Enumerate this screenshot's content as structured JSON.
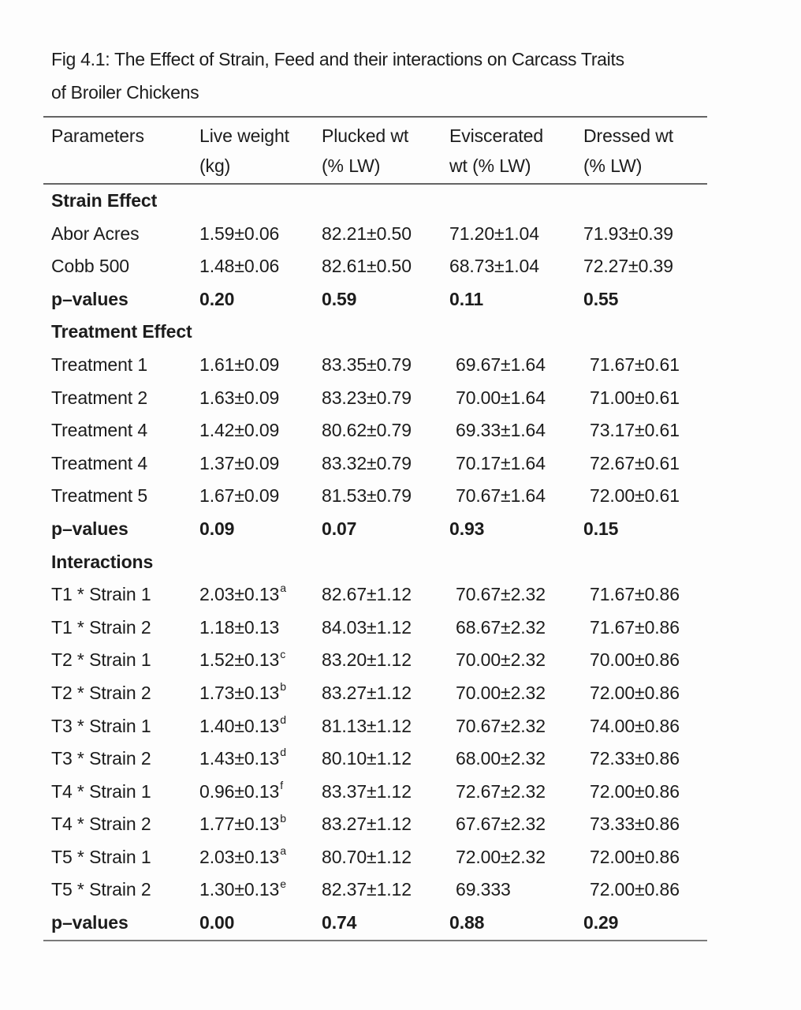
{
  "page": {
    "background_color": "#fdfdfd",
    "text_color": "#1c1c1c",
    "rule_color": "#646464"
  },
  "figure": {
    "title_line1": "Fig 4.1: The Effect of Strain, Feed and their interactions on Carcass Traits",
    "title_line2": "of Broiler Chickens"
  },
  "table": {
    "column_headers": [
      "Parameters",
      "Live weight\n(kg)",
      "Plucked wt\n(% LW)",
      "Eviscerated\nwt (% LW)",
      "Dressed wt\n(% LW)"
    ],
    "sections": [
      {
        "header": "Strain Effect",
        "rows": [
          {
            "label": "Abor Acres",
            "values": [
              "1.59±0.06",
              "82.21±0.50",
              "71.20±1.04",
              "71.93±0.39"
            ]
          },
          {
            "label": "Cobb 500",
            "values": [
              "1.48±0.06",
              "82.61±0.50",
              "68.73±1.04",
              "72.27±0.39"
            ]
          },
          {
            "label": "p–values",
            "bold": true,
            "values": [
              "0.20",
              "0.59",
              "0.11",
              "0.55"
            ]
          }
        ]
      },
      {
        "header": "Treatment Effect",
        "rows": [
          {
            "label": "Treatment 1",
            "values": [
              "1.61±0.09",
              "83.35±0.79",
              "69.67±1.64",
              "71.67±0.61"
            ]
          },
          {
            "label": "Treatment 2",
            "values": [
              "1.63±0.09",
              "83.23±0.79",
              "70.00±1.64",
              "71.00±0.61"
            ]
          },
          {
            "label": "Treatment 4",
            "values": [
              "1.42±0.09",
              "80.62±0.79",
              "69.33±1.64",
              "73.17±0.61"
            ]
          },
          {
            "label": "Treatment 4",
            "values": [
              "1.37±0.09",
              "83.32±0.79",
              "70.17±1.64",
              "72.67±0.61"
            ]
          },
          {
            "label": "Treatment 5",
            "values": [
              "1.67±0.09",
              "81.53±0.79",
              "70.67±1.64",
              "72.00±0.61"
            ]
          },
          {
            "label": "p–values",
            "bold": true,
            "values": [
              "0.09",
              "0.07",
              "0.93",
              "0.15"
            ]
          }
        ]
      },
      {
        "header": "Interactions",
        "rows": [
          {
            "label": "T1 * Strain 1",
            "values": [
              {
                "t": "2.03±0.13",
                "sup": "a"
              },
              "82.67±1.12",
              "70.67±2.32",
              "71.67±0.86"
            ]
          },
          {
            "label": "T1 * Strain 2",
            "values": [
              "1.18±0.13",
              "84.03±1.12",
              "68.67±2.32",
              "71.67±0.86"
            ]
          },
          {
            "label": "T2 * Strain 1",
            "values": [
              {
                "t": "1.52±0.13",
                "sup": "c"
              },
              "83.20±1.12",
              "70.00±2.32",
              "70.00±0.86"
            ]
          },
          {
            "label": "T2 * Strain 2",
            "values": [
              {
                "t": "1.73±0.13",
                "sup": "b"
              },
              "83.27±1.12",
              "70.00±2.32",
              "72.00±0.86"
            ]
          },
          {
            "label": "T3 * Strain 1",
            "values": [
              {
                "t": "1.40±0.13",
                "sup": "d"
              },
              "81.13±1.12",
              "70.67±2.32",
              "74.00±0.86"
            ]
          },
          {
            "label": "T3 * Strain 2",
            "values": [
              {
                "t": "1.43±0.13",
                "sup": "d"
              },
              "80.10±1.12",
              "68.00±2.32",
              "72.33±0.86"
            ]
          },
          {
            "label": "T4 * Strain 1",
            "values": [
              {
                "t": "0.96±0.13",
                "sup": "f"
              },
              "83.37±1.12",
              "72.67±2.32",
              "72.00±0.86"
            ]
          },
          {
            "label": "T4 * Strain 2",
            "values": [
              {
                "t": "1.77±0.13",
                "sup": "b"
              },
              "83.27±1.12",
              "67.67±2.32",
              "73.33±0.86"
            ]
          },
          {
            "label": "T5 * Strain 1",
            "values": [
              {
                "t": "2.03±0.13",
                "sup": "a"
              },
              "80.70±1.12",
              "72.00±2.32",
              "72.00±0.86"
            ]
          },
          {
            "label": "T5 * Strain 2",
            "values": [
              {
                "t": "1.30±0.13",
                "sup": "e"
              },
              "82.37±1.12",
              "69.333",
              "72.00±0.86"
            ]
          },
          {
            "label": "p–values",
            "bold": true,
            "values": [
              "0.00",
              "0.74",
              "0.88",
              "0.29"
            ]
          }
        ]
      }
    ]
  }
}
